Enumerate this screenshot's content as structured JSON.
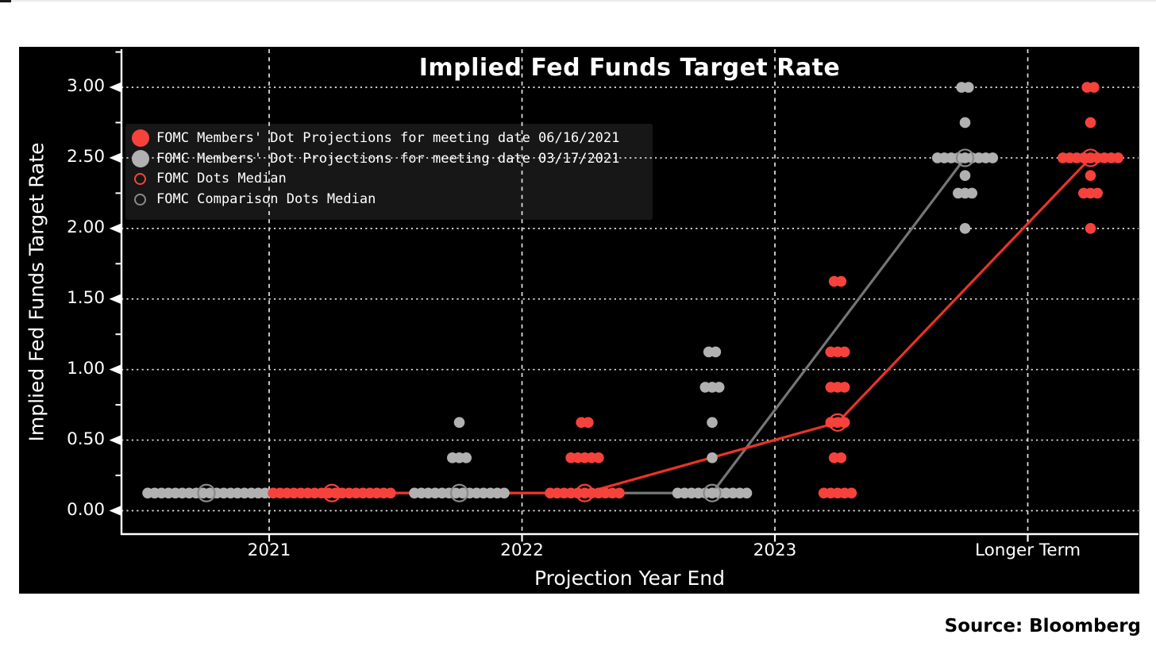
{
  "page": {
    "source_note": "Source: Bloomberg"
  },
  "chart_data": {
    "type": "scatter",
    "title": "Implied Fed Funds Target Rate",
    "xlabel": "Projection Year End",
    "ylabel": "Implied Fed Funds Target Rate",
    "x_categories": [
      "2021",
      "2022",
      "2023",
      "Longer Term"
    ],
    "y_ticks": [
      0.0,
      0.5,
      1.0,
      1.5,
      2.0,
      2.5,
      3.0
    ],
    "y_tick_labels": [
      "0.00",
      "0.50",
      "1.00",
      "1.50",
      "2.00",
      "2.50",
      "3.00"
    ],
    "ylim": [
      -0.17,
      3.27
    ],
    "grid": true,
    "legend_position": "upper-left",
    "colors": {
      "panel_background": "#000000",
      "grid": "#e4e4e4",
      "axis": "#ffffff",
      "text": "#ffffff",
      "legend_background": "#171717",
      "red": "#f7423c",
      "red_line": "#ea3328",
      "gray": "#b1b1b1",
      "gray_ring": "#8a8a8a",
      "gray_line": "#757575"
    },
    "series": [
      {
        "name": "FOMC Members' Dot Projections for meeting date 06/16/2021",
        "dot_color": "#f7423c",
        "median_line_color": "#ea3328",
        "median_ring_color": "#f7423c",
        "median_label": "FOMC Dots Median",
        "medians": [
          0.125,
          0.125,
          0.625,
          2.5
        ],
        "dots": [
          {
            "category": "2021",
            "values": {
              "0.125": 18
            }
          },
          {
            "category": "2022",
            "values": {
              "0.125": 11,
              "0.375": 5,
              "0.625": 2
            }
          },
          {
            "category": "2023",
            "values": {
              "0.125": 5,
              "0.375": 2,
              "0.625": 3,
              "0.875": 3,
              "1.125": 3,
              "1.625": 2
            }
          },
          {
            "category": "Longer Term",
            "values": {
              "2.00": 1,
              "2.25": 3,
              "2.375": 1,
              "2.50": 9,
              "2.75": 1,
              "3.00": 2
            }
          }
        ]
      },
      {
        "name": "FOMC Members' Dot Projections for meeting date 03/17/2021",
        "dot_color": "#b1b1b1",
        "median_line_color": "#757575",
        "median_ring_color": "#8a8a8a",
        "median_label": "FOMC Comparison Dots Median",
        "medians": [
          0.125,
          0.125,
          0.125,
          2.5
        ],
        "dots": [
          {
            "category": "2021",
            "values": {
              "0.125": 18
            }
          },
          {
            "category": "2022",
            "values": {
              "0.125": 14,
              "0.375": 3,
              "0.625": 1
            }
          },
          {
            "category": "2023",
            "values": {
              "0.125": 11,
              "0.375": 1,
              "0.625": 1,
              "0.875": 3,
              "1.125": 2
            }
          },
          {
            "category": "Longer Term",
            "values": {
              "2.00": 1,
              "2.25": 3,
              "2.375": 1,
              "2.50": 9,
              "2.75": 1,
              "3.00": 2
            }
          }
        ]
      }
    ],
    "legend": [
      {
        "label": "FOMC Members' Dot Projections for meeting date 06/16/2021",
        "marker": "dot",
        "color": "#f7423c"
      },
      {
        "label": "FOMC Members' Dot Projections for meeting date 03/17/2021",
        "marker": "dot",
        "color": "#b1b1b1"
      },
      {
        "label": "FOMC Dots Median",
        "marker": "ring",
        "color": "#f7423c"
      },
      {
        "label": "FOMC Comparison Dots Median",
        "marker": "ring",
        "color": "#8a8a8a"
      }
    ]
  }
}
